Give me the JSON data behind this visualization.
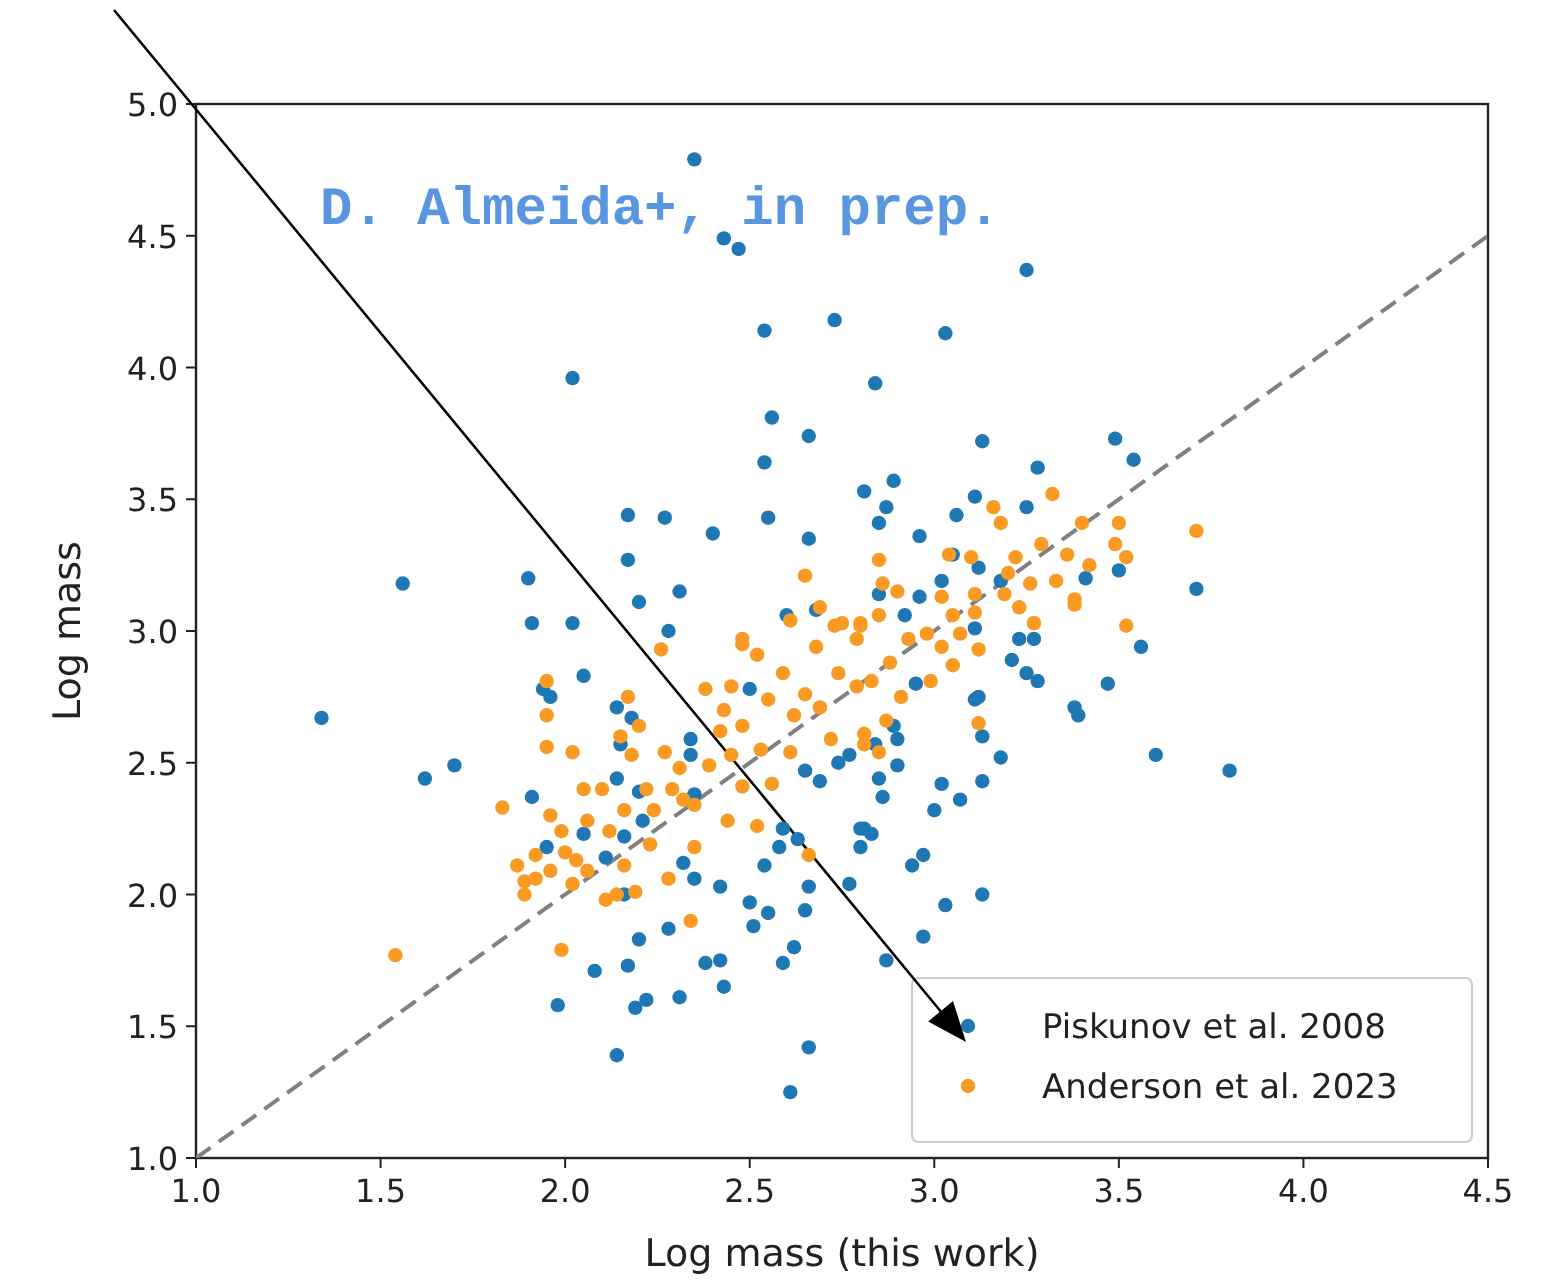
{
  "chart_data": {
    "type": "scatter",
    "xlabel": "Log mass (this work)",
    "ylabel": "Log mass",
    "annotations": [
      "D. Almeida+, in prep."
    ],
    "xlim": [
      1.0,
      4.5
    ],
    "ylim": [
      1.0,
      5.0
    ],
    "xticks": [
      {
        "value": 1,
        "label": "1.0"
      },
      {
        "value": 1.5,
        "label": "1.5"
      },
      {
        "value": 2,
        "label": "2.0"
      },
      {
        "value": 2.5,
        "label": "2.5"
      },
      {
        "value": 3,
        "label": "3.0"
      },
      {
        "value": 3.5,
        "label": "3.5"
      },
      {
        "value": 4,
        "label": "4.0"
      },
      {
        "value": 4.5,
        "label": "4.5"
      }
    ],
    "yticks": [
      {
        "value": 1,
        "label": "1.0"
      },
      {
        "value": 1.5,
        "label": "1.5"
      },
      {
        "value": 2,
        "label": "2.0"
      },
      {
        "value": 2.5,
        "label": "2.5"
      },
      {
        "value": 3,
        "label": "3.0"
      },
      {
        "value": 3.5,
        "label": "3.5"
      },
      {
        "value": 4,
        "label": "4.0"
      },
      {
        "value": 4.5,
        "label": "4.5"
      },
      {
        "value": 5,
        "label": "5.0"
      }
    ],
    "grid": false,
    "legend": "bottom right",
    "marker": "circle",
    "series": [
      {
        "type": "line",
        "color": "#808080",
        "line_style": "dashed",
        "marker": "none",
        "x": [
          1.0,
          4.5
        ],
        "values": [
          1.0,
          4.5
        ]
      },
      {
        "name": "Piskunov et al. 2008",
        "color": "#1f77b4",
        "x": [
          2.35,
          2.43,
          2.47,
          2.54,
          2.73,
          2.02,
          2.56,
          2.66,
          2.54,
          2.81,
          2.17,
          2.27,
          2.4,
          2.55,
          2.66,
          2.17,
          1.56,
          1.9,
          2.31,
          2.2,
          1.91,
          2.02,
          2.28,
          2.6,
          2.68,
          3.25,
          3.03,
          2.84,
          3.13,
          3.49,
          3.54,
          3.28,
          2.89,
          2.87,
          2.85,
          3.11,
          3.25,
          3.06,
          2.96,
          3.05,
          3.12,
          3.02,
          3.18,
          3.41,
          3.5,
          3.71,
          2.85,
          2.96,
          2.92,
          3.11,
          3.23,
          3.27,
          3.56,
          3.21,
          3.25,
          3.28,
          3.47,
          2.95,
          3.11,
          3.12,
          3.38,
          3.39,
          2.89,
          3.13,
          2.84,
          2.9,
          3.18,
          3.6,
          3.8,
          2.9,
          2.85,
          3.13,
          3.02,
          2.86,
          3.07,
          3.0,
          2.81,
          2.83,
          2.8,
          2.97,
          2.94,
          3.13,
          3.03,
          2.97,
          2.87,
          2.05,
          1.94,
          1.96,
          1.34,
          1.62,
          1.7,
          2.14,
          2.18,
          2.15,
          2.14,
          1.91,
          2.34,
          2.2,
          2.35,
          2.05,
          1.95,
          2.11,
          2.16,
          2.21,
          2.32,
          2.35,
          2.16,
          2.42,
          2.54,
          2.5,
          2.55,
          2.51,
          2.58,
          2.63,
          2.66,
          2.65,
          2.59,
          2.77,
          2.28,
          2.2,
          2.08,
          2.17,
          2.38,
          2.42,
          2.43,
          2.31,
          2.22,
          2.19,
          1.98,
          2.62,
          2.59,
          2.14,
          2.66,
          2.61,
          2.65,
          2.69,
          2.74,
          2.77,
          2.8,
          2.5,
          2.34
        ],
        "values": [
          4.79,
          4.49,
          4.45,
          4.14,
          4.18,
          3.96,
          3.81,
          3.74,
          3.64,
          3.53,
          3.44,
          3.43,
          3.37,
          3.43,
          3.35,
          3.27,
          3.18,
          3.2,
          3.15,
          3.11,
          3.03,
          3.03,
          3.0,
          3.06,
          3.08,
          4.37,
          4.13,
          3.94,
          3.72,
          3.73,
          3.65,
          3.62,
          3.57,
          3.47,
          3.41,
          3.51,
          3.47,
          3.44,
          3.36,
          3.29,
          3.24,
          3.19,
          3.19,
          3.2,
          3.23,
          3.16,
          3.14,
          3.13,
          3.06,
          3.01,
          2.97,
          2.97,
          2.94,
          2.89,
          2.84,
          2.81,
          2.8,
          2.8,
          2.74,
          2.75,
          2.71,
          2.68,
          2.64,
          2.6,
          2.57,
          2.59,
          2.52,
          2.53,
          2.47,
          2.49,
          2.44,
          2.43,
          2.42,
          2.37,
          2.36,
          2.32,
          2.25,
          2.23,
          2.18,
          2.15,
          2.11,
          2.0,
          1.96,
          1.84,
          1.75,
          2.83,
          2.78,
          2.75,
          2.67,
          2.44,
          2.49,
          2.71,
          2.67,
          2.57,
          2.44,
          2.37,
          2.59,
          2.39,
          2.38,
          2.23,
          2.18,
          2.14,
          2.22,
          2.28,
          2.12,
          2.06,
          2.0,
          2.03,
          2.11,
          1.97,
          1.93,
          1.88,
          2.18,
          2.21,
          2.03,
          1.94,
          2.25,
          2.04,
          1.87,
          1.83,
          1.71,
          1.73,
          1.74,
          1.75,
          1.65,
          1.61,
          1.6,
          1.57,
          1.58,
          1.8,
          1.74,
          1.39,
          1.42,
          1.25,
          2.47,
          2.43,
          2.5,
          2.53,
          2.25,
          2.78,
          2.53
        ]
      },
      {
        "name": "Anderson et al. 2023",
        "color": "#f89a24",
        "x": [
          1.54,
          1.83,
          1.87,
          1.89,
          1.89,
          1.92,
          1.92,
          1.96,
          1.96,
          1.99,
          1.95,
          1.95,
          1.95,
          2.02,
          2.0,
          2.03,
          2.02,
          2.06,
          2.05,
          2.06,
          2.1,
          2.11,
          2.14,
          2.19,
          2.16,
          2.12,
          2.16,
          2.15,
          2.17,
          2.2,
          2.18,
          2.22,
          2.24,
          2.23,
          2.28,
          2.35,
          2.34,
          1.99,
          2.26,
          2.27,
          2.29,
          2.32,
          2.31,
          2.35,
          2.38,
          2.39,
          2.43,
          2.42,
          2.45,
          2.44,
          2.48,
          2.45,
          2.48,
          2.48,
          2.52,
          2.52,
          2.53,
          2.55,
          2.56,
          2.59,
          2.62,
          2.61,
          2.66,
          2.65,
          2.68,
          2.69,
          2.72,
          2.73,
          2.74,
          2.79,
          2.79,
          2.8,
          2.81,
          2.69,
          2.61,
          2.65,
          2.75,
          2.8,
          2.48,
          3.32,
          3.16,
          3.18,
          3.4,
          3.5,
          3.71,
          3.49,
          3.29,
          2.85,
          3.04,
          3.1,
          3.22,
          3.36,
          3.42,
          3.52,
          3.2,
          3.33,
          2.86,
          2.9,
          3.02,
          3.11,
          3.19,
          3.26,
          3.38,
          3.23,
          3.11,
          3.27,
          3.05,
          2.85,
          2.98,
          3.52,
          3.38,
          3.12,
          3.12,
          3.05,
          2.99,
          2.91,
          2.87,
          2.85,
          2.83,
          2.81,
          3.02,
          2.93,
          2.88,
          3.07,
          3.27
        ],
        "values": [
          1.77,
          2.33,
          2.11,
          2.0,
          2.05,
          2.15,
          2.06,
          2.09,
          2.3,
          2.24,
          2.56,
          2.68,
          2.81,
          2.54,
          2.16,
          2.13,
          2.04,
          2.09,
          2.4,
          2.28,
          2.4,
          1.98,
          2.0,
          2.01,
          2.11,
          2.24,
          2.32,
          2.6,
          2.75,
          2.64,
          2.53,
          2.4,
          2.32,
          2.19,
          2.06,
          2.18,
          1.9,
          1.79,
          2.93,
          2.54,
          2.4,
          2.36,
          2.48,
          2.34,
          2.78,
          2.49,
          2.7,
          2.62,
          2.53,
          2.28,
          2.95,
          2.79,
          2.64,
          2.41,
          2.26,
          2.91,
          2.55,
          2.74,
          2.42,
          2.84,
          2.68,
          2.54,
          2.15,
          2.76,
          2.94,
          2.71,
          2.59,
          3.02,
          2.84,
          2.97,
          2.79,
          3.03,
          2.57,
          3.09,
          3.04,
          3.21,
          3.03,
          3.02,
          2.97,
          3.52,
          3.47,
          3.41,
          3.41,
          3.41,
          3.38,
          3.33,
          3.33,
          3.27,
          3.29,
          3.28,
          3.28,
          3.29,
          3.25,
          3.28,
          3.22,
          3.19,
          3.18,
          3.15,
          3.13,
          3.14,
          3.14,
          3.18,
          3.12,
          3.09,
          3.07,
          3.03,
          3.06,
          3.06,
          2.99,
          3.02,
          3.1,
          2.93,
          2.65,
          2.87,
          2.81,
          2.75,
          2.66,
          2.54,
          2.81,
          2.61,
          2.94,
          2.97,
          2.88,
          2.99,
          3.03
        ]
      }
    ]
  }
}
